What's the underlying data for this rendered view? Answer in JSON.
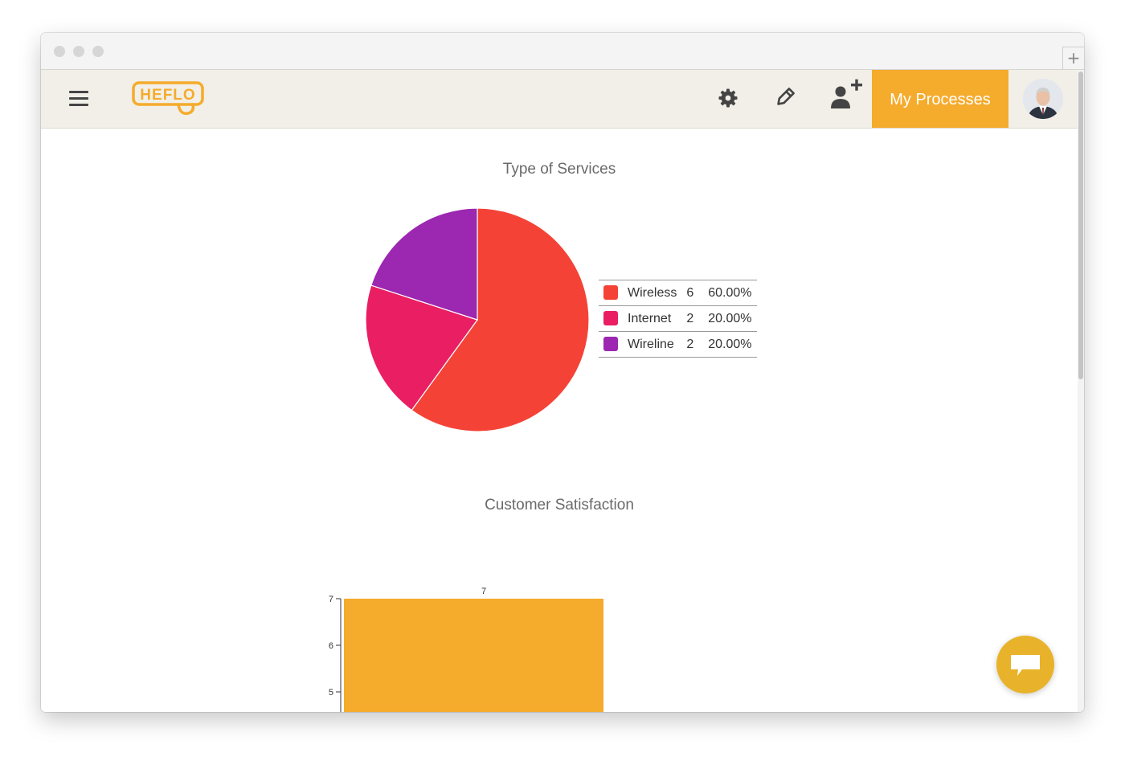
{
  "header": {
    "logo_text": "HEFLO",
    "my_processes_label": "My Processes"
  },
  "icons": {
    "menu": "hamburger-menu-icon",
    "settings": "gear-icon",
    "edit": "pencil-icon",
    "add_user": "add-user-icon",
    "chat": "chat-bubble-icon"
  },
  "colors": {
    "brand_orange": "#f5ab2c",
    "header_bg": "#f1efe7",
    "chat_button": "#e8b32a"
  },
  "charts": {
    "pie_title": "Type of Services",
    "bar_title": "Customer Satisfaction"
  },
  "legend": [
    {
      "label": "Wireless",
      "count": "6",
      "percent": "60.00%",
      "color": "#f44336"
    },
    {
      "label": "Internet",
      "count": "2",
      "percent": "20.00%",
      "color": "#e91e63"
    },
    {
      "label": "Wireline",
      "count": "2",
      "percent": "20.00%",
      "color": "#9c27b0"
    }
  ],
  "chart_data": [
    {
      "type": "pie",
      "title": "Type of Services",
      "labels": [
        "Wireless",
        "Internet",
        "Wireline"
      ],
      "values": [
        6,
        2,
        2
      ],
      "colors": [
        "#f44336",
        "#e91e63",
        "#9c27b0"
      ],
      "legend": "right"
    },
    {
      "type": "bar",
      "title": "Customer Satisfaction",
      "values": [
        7
      ],
      "data_labels": [
        "7"
      ],
      "y_ticks": [
        5,
        6,
        7
      ],
      "color": "#f5ab2c"
    }
  ]
}
